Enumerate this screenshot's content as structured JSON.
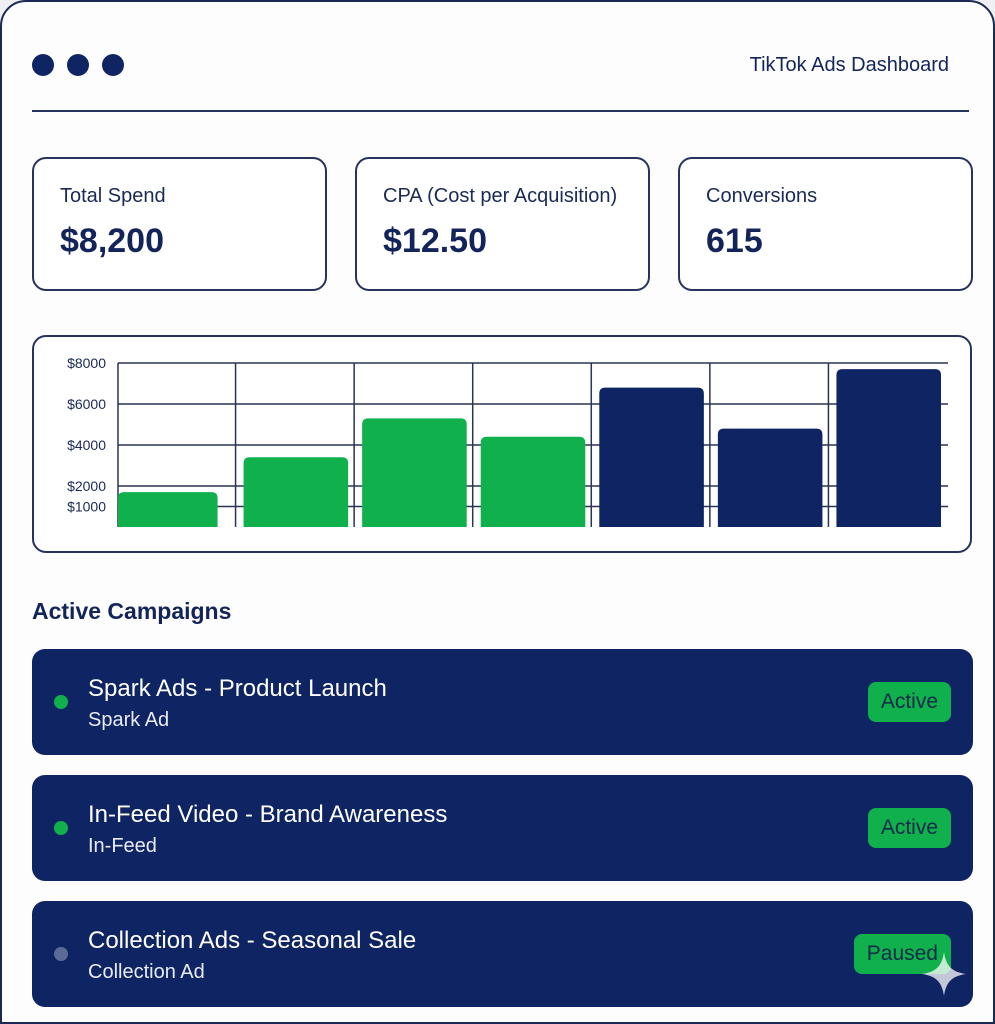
{
  "window": {
    "title": "TikTok Ads Dashboard"
  },
  "kpis": [
    {
      "label": "Total Spend",
      "value": "$8,200"
    },
    {
      "label": "CPA (Cost per Acquisition)",
      "value": "$12.50"
    },
    {
      "label": "Conversions",
      "value": "615"
    }
  ],
  "colors": {
    "navy": "#0f2463",
    "green": "#10b04c",
    "paused_dot": "#5c6a96"
  },
  "chart_data": {
    "type": "bar",
    "categories": [
      "",
      "",
      "",
      "",
      "",
      "",
      ""
    ],
    "values": [
      1700,
      3400,
      5300,
      4400,
      6800,
      4800,
      7700
    ],
    "bar_colors": [
      "#10b04c",
      "#10b04c",
      "#10b04c",
      "#10b04c",
      "#0f2463",
      "#0f2463",
      "#0f2463"
    ],
    "y_ticks": [
      {
        "value": 1000,
        "label": "$1000"
      },
      {
        "value": 2000,
        "label": "$2000"
      },
      {
        "value": 4000,
        "label": "$4000"
      },
      {
        "value": 6000,
        "label": "$6000"
      },
      {
        "value": 8000,
        "label": "$8000"
      }
    ],
    "ylim": [
      0,
      8000
    ],
    "grid": true,
    "title": "",
    "xlabel": "",
    "ylabel": ""
  },
  "campaigns_section": {
    "title": "Active Campaigns",
    "items": [
      {
        "name": "Spark Ads - Product Launch",
        "type": "Spark Ad",
        "status": "Active",
        "dot_color": "#10b04c"
      },
      {
        "name": "In-Feed Video - Brand Awareness",
        "type": "In-Feed",
        "status": "Active",
        "dot_color": "#10b04c"
      },
      {
        "name": "Collection Ads - Seasonal Sale",
        "type": "Collection Ad",
        "status": "Paused",
        "dot_color": "#5c6a96"
      }
    ]
  }
}
